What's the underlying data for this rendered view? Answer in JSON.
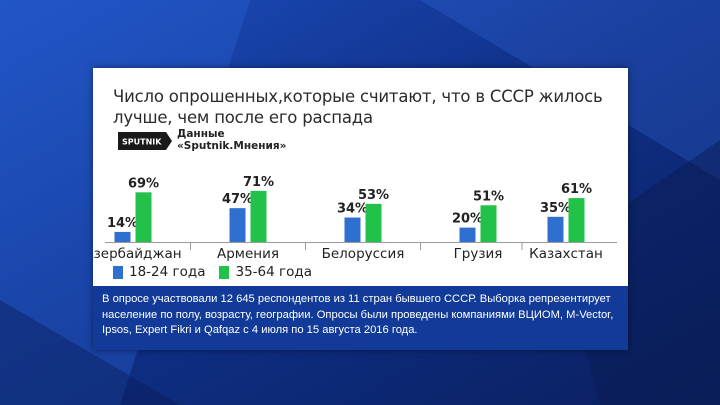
{
  "colors": {
    "series_young": "#2f6fd0",
    "series_old": "#22c24a",
    "note_bg": "#123a98"
  },
  "title": "Число опрошенных,которые считают, что в СССР жилось лучше, чем после его распада",
  "source": {
    "logo_text": "SPUTNIK",
    "line1": "Данные",
    "line2": "«Sputnik.Мнения»"
  },
  "chart_data": {
    "type": "bar",
    "title": "Число опрошенных,которые считают, что в СССР жилось лучше, чем после его распада",
    "categories": [
      "Азербайджан",
      "Армения",
      "Белоруссия",
      "Грузия",
      "Казахстан"
    ],
    "series": [
      {
        "name": "18-24 года",
        "values": [
          14,
          47,
          34,
          20,
          35
        ]
      },
      {
        "name": "35-64 года",
        "values": [
          69,
          71,
          53,
          51,
          61
        ]
      }
    ],
    "value_labels": [
      [
        "14%",
        "47%",
        "34%",
        "20%",
        "35%"
      ],
      [
        "69%",
        "71%",
        "53%",
        "51%",
        "61%"
      ]
    ],
    "ylim": [
      0,
      100
    ],
    "grid": false,
    "legend": "bottom-left"
  },
  "note": "В опросе участвовали 12 645 респондентов из 11 стран бывшего СССР. Выборка репрезентирует население по полу, возрасту, географии. Опросы были проведены компаниями ВЦИОМ, M-Vector, Ipsos, Expert Fikri и Qafqaz с 4 июля по 15 августа 2016 года."
}
